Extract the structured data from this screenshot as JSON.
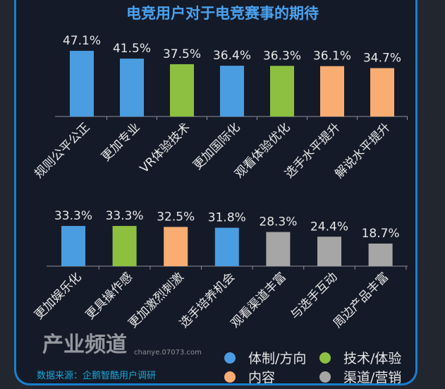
{
  "chart_data": [
    {
      "type": "bar",
      "title": "电竞用户对于电竞赛事的期待",
      "categories": [
        "规则公平公正",
        "更加专业",
        "VR体验技术",
        "更加国际化",
        "观看体验优化",
        "选手水平提升",
        "解说水平提升"
      ],
      "values": [
        47.1,
        41.5,
        37.5,
        36.4,
        36.3,
        36.1,
        34.7
      ],
      "labels": [
        "47.1%",
        "41.5%",
        "37.5%",
        "36.4%",
        "36.3%",
        "36.1%",
        "34.7%"
      ],
      "groups": [
        "体制/方向",
        "体制/方向",
        "技术/体验",
        "体制/方向",
        "技术/体验",
        "内容",
        "内容"
      ]
    },
    {
      "type": "bar",
      "categories": [
        "更加娱乐化",
        "更具操作感",
        "更加激烈刺激",
        "选手培养机会",
        "观看渠道丰富",
        "与选手互动",
        "周边产品丰富"
      ],
      "values": [
        33.3,
        33.3,
        32.5,
        31.8,
        28.3,
        24.4,
        18.7
      ],
      "labels": [
        "33.3%",
        "33.3%",
        "32.5%",
        "31.8%",
        "28.3%",
        "24.4%",
        "18.7%"
      ],
      "groups": [
        "体制/方向",
        "技术/体验",
        "内容",
        "体制/方向",
        "渠道/营销",
        "渠道/营销",
        "渠道/营销"
      ]
    }
  ],
  "legend": [
    {
      "name": "体制/方向",
      "color": "#4a9de0"
    },
    {
      "name": "技术/体验",
      "color": "#8dc040"
    },
    {
      "name": "内容",
      "color": "#f9ad73"
    },
    {
      "name": "渠道/营销",
      "color": "#a6a6a6"
    }
  ],
  "source": "数据来源：企鹅智酷用户调研",
  "watermark": "产业频道 chanye.07073.com"
}
